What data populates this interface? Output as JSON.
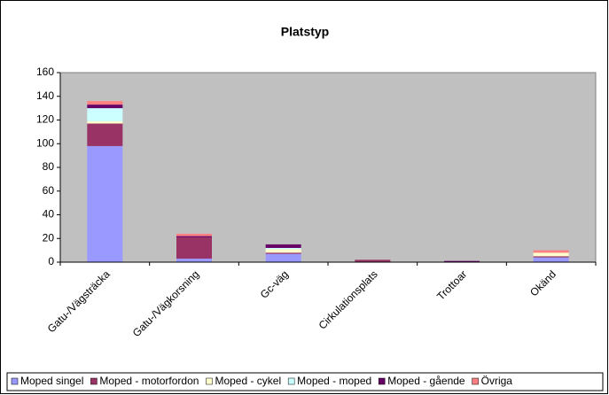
{
  "chart_data": {
    "type": "stacked_bar",
    "title": "Platstyp",
    "categories": [
      "Gatu-/Vägsträcka",
      "Gatu-/Vägkorsning",
      "Gc-väg",
      "Cirkulationsplats",
      "Trottoar",
      "Okänd"
    ],
    "series": [
      {
        "name": "Moped singel",
        "color": "#9999ff",
        "values": [
          98,
          3,
          7,
          0,
          0,
          4
        ]
      },
      {
        "name": "Moped - motorfordon",
        "color": "#993366",
        "values": [
          19,
          18,
          1,
          2,
          0,
          1
        ]
      },
      {
        "name": "Moped - cykel",
        "color": "#ffffcc",
        "values": [
          2,
          0,
          3,
          0,
          0,
          3
        ]
      },
      {
        "name": "Moped - moped",
        "color": "#ccffff",
        "values": [
          11,
          0,
          1,
          0,
          0,
          0
        ]
      },
      {
        "name": "Moped - gående",
        "color": "#660066",
        "values": [
          3,
          1,
          3,
          0,
          1,
          0
        ]
      },
      {
        "name": "Övriga",
        "color": "#ff8080",
        "values": [
          3,
          2,
          0,
          0,
          0,
          2
        ]
      }
    ],
    "ylim": [
      0,
      160
    ],
    "yticks": [
      0,
      20,
      40,
      60,
      80,
      100,
      120,
      140,
      160
    ],
    "plot_background": "#c0c0c0",
    "legend": "bottom"
  }
}
